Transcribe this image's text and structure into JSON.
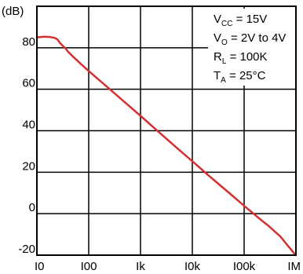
{
  "chart_data": {
    "type": "line",
    "title": "",
    "xlabel": "",
    "ylabel": "(dB)",
    "x_scale": "log",
    "x_ticks": [
      {
        "value": 10,
        "label": "I0"
      },
      {
        "value": 100,
        "label": "I00"
      },
      {
        "value": 1000,
        "label": "Ik"
      },
      {
        "value": 10000,
        "label": "I0k"
      },
      {
        "value": 100000,
        "label": "I00k"
      },
      {
        "value": 1000000,
        "label": "IM"
      }
    ],
    "y_ticks": [
      {
        "value": -20,
        "label": "-20"
      },
      {
        "value": 0,
        "label": "0"
      },
      {
        "value": 20,
        "label": "20"
      },
      {
        "value": 40,
        "label": "40"
      },
      {
        "value": 60,
        "label": "60"
      },
      {
        "value": 80,
        "label": "80"
      }
    ],
    "xlim": [
      10,
      1000000
    ],
    "ylim": [
      -20,
      100
    ],
    "grid": true,
    "line_color": "#d32f2f",
    "series": [
      {
        "x": [
          10,
          14,
          18,
          22,
          25,
          28,
          32,
          36,
          40,
          50,
          70,
          100,
          200,
          500,
          1000,
          2000,
          5000,
          10000,
          20000,
          50000,
          100000,
          200000,
          300000,
          400000,
          500000,
          550000,
          600000,
          650000,
          700000,
          800000,
          900000,
          1000000
        ],
        "y": [
          85,
          85.3,
          85.2,
          84.8,
          84,
          82.3,
          80.8,
          79.6,
          78.1,
          75.7,
          72.3,
          68.8,
          62.3,
          53.7,
          47.2,
          40.5,
          31.8,
          25.3,
          18.7,
          10.3,
          3.8,
          -2.5,
          -6,
          -8.8,
          -11,
          -12.2,
          -13.5,
          -14.5,
          -15.5,
          -17.2,
          -18.8,
          -20
        ]
      }
    ],
    "annotation": {
      "lines": [
        {
          "main": "V",
          "sub": "CC",
          "rest": " = 15V"
        },
        {
          "main": "V",
          "sub": "O",
          "rest": " = 2V to 4V"
        },
        {
          "main": "R",
          "sub": "L",
          "rest": " = 100K"
        },
        {
          "main": "T",
          "sub": "A",
          "rest": " = 25°C"
        }
      ],
      "placement": "top-right"
    }
  }
}
